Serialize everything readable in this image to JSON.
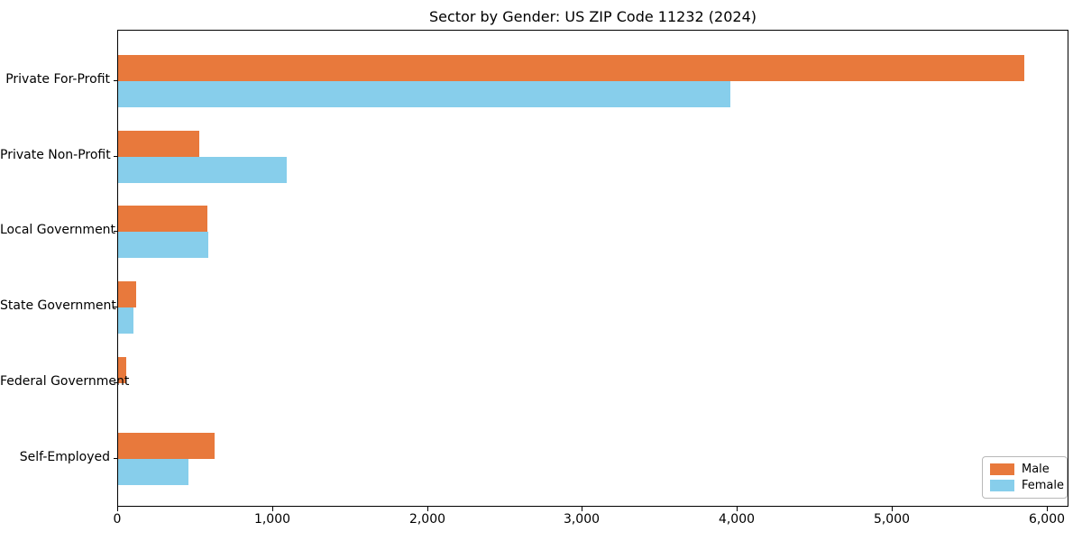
{
  "title": "Sector by Gender: US ZIP Code 11232 (2024)",
  "colors": {
    "male": "#e8793c",
    "female": "#87ceeb",
    "spine": "#000000",
    "legend_border": "#b8b8b8",
    "background": "#ffffff"
  },
  "legend": {
    "position": "lower right",
    "items": [
      {
        "label": "Male",
        "color": "#e8793c"
      },
      {
        "label": "Female",
        "color": "#87ceeb"
      }
    ]
  },
  "chart_data": {
    "type": "bar",
    "orientation": "horizontal",
    "title": "Sector by Gender: US ZIP Code 11232 (2024)",
    "categories": [
      "Private For-Profit",
      "Private Non-Profit",
      "Local Government",
      "State Government",
      "Federal Government",
      "Self-Employed"
    ],
    "series": [
      {
        "name": "Male",
        "color": "#e8793c",
        "values": [
          5850,
          525,
          575,
          115,
          50,
          620
        ]
      },
      {
        "name": "Female",
        "color": "#87ceeb",
        "values": [
          3950,
          1090,
          580,
          100,
          0,
          455
        ]
      }
    ],
    "xlabel": "",
    "ylabel": "",
    "xlim": [
      0,
      6130
    ],
    "xticks": [
      0,
      1000,
      2000,
      3000,
      4000,
      5000,
      6000
    ],
    "xtick_labels": [
      "0",
      "1,000",
      "2,000",
      "3,000",
      "4,000",
      "5,000",
      "6,000"
    ],
    "grid": false,
    "legend_position": "lower right"
  }
}
